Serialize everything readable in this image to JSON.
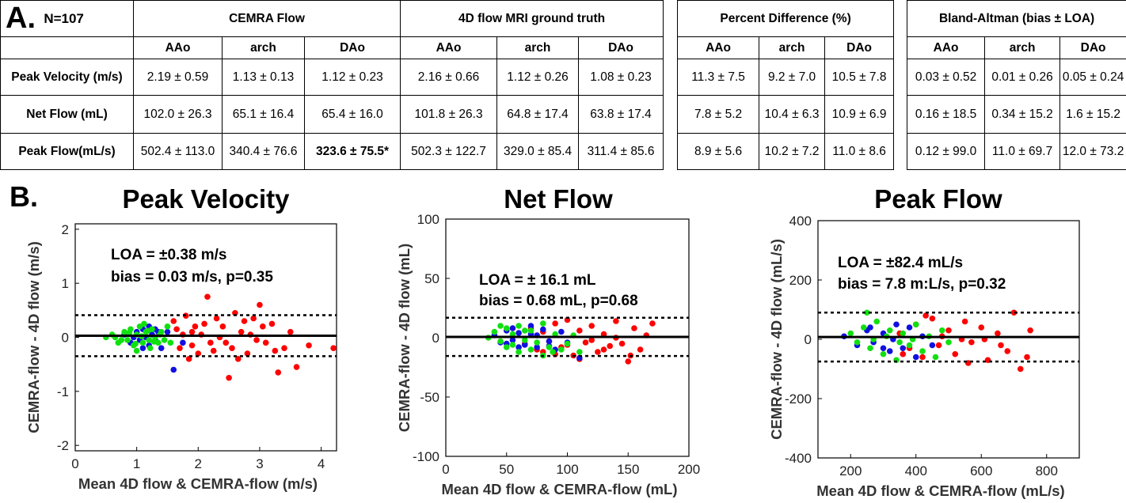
{
  "panel_a": {
    "letter": "A.",
    "n_label": "N=107",
    "groups": [
      "CEMRA Flow",
      "4D flow MRI ground truth",
      "Percent Difference (%)",
      "Bland-Altman (bias ± LOA)"
    ],
    "subheaders": [
      "AAo",
      "arch",
      "DAo"
    ],
    "rows": [
      {
        "label": "Peak Velocity (m/s)",
        "cells": [
          "2.19 ± 0.59",
          "1.13 ± 0.13",
          "1.12 ± 0.23",
          "2.16 ± 0.66",
          "1.12 ± 0.26",
          "1.08 ± 0.23",
          "11.3 ± 7.5",
          "9.2 ± 7.0",
          "10.5 ± 7.8",
          "0.03 ± 0.52",
          "0.01 ± 0.26",
          "0.05 ± 0.24"
        ]
      },
      {
        "label": "Net Flow (mL)",
        "cells": [
          "102.0 ± 26.3",
          "65.1 ± 16.4",
          "65.4 ± 16.0",
          "101.8 ± 26.3",
          "64.8 ± 17.4",
          "63.8 ± 17.4",
          "7.8 ± 5.2",
          "10.4 ± 6.3",
          "10.9 ± 6.9",
          "0.16 ± 18.5",
          "0.34 ± 15.2",
          "1.6 ± 15.2"
        ]
      },
      {
        "label": "Peak Flow(mL/s)",
        "cells": [
          "502.4 ± 113.0",
          "340.4 ± 76.6",
          "323.6 ± 75.5*",
          "502.3 ± 122.7",
          "329.0 ± 85.4",
          "311.4 ± 85.6",
          "8.9 ± 5.6",
          "10.2 ± 7.2",
          "11.0 ± 8.6",
          "0.12 ± 99.0",
          "11.0 ± 69.7",
          "12.0 ± 73.2"
        ]
      }
    ]
  },
  "panel_b": {
    "letter": "B."
  },
  "colors": {
    "AAo": "#ff0000",
    "arch": "#1010e0",
    "DAo": "#10e010"
  },
  "chart_data": [
    {
      "type": "scatter",
      "title": "Peak Velocity",
      "xlabel": "Mean 4D flow & CEMRA-flow (m/s)",
      "ylabel": "CEMRA-flow - 4D flow (m/s)",
      "xlim": [
        0,
        4.25
      ],
      "ylim": [
        -2.1,
        2.1
      ],
      "xticks": [
        "0",
        "1",
        "2",
        "3",
        "4"
      ],
      "yticks": [
        "-2",
        "-1",
        "0",
        "1",
        "2"
      ],
      "annotation": [
        "LOA = ±0.38 m/s",
        "bias = 0.03 m/s, p=0.35"
      ],
      "bias": 0.03,
      "loa_upper": 0.41,
      "loa_lower": -0.35,
      "series": [
        {
          "color": "#ff0000",
          "points": [
            [
              1.6,
              0.3
            ],
            [
              1.7,
              -0.2
            ],
            [
              1.8,
              0.4
            ],
            [
              1.9,
              0.1
            ],
            [
              2.0,
              -0.3
            ],
            [
              2.1,
              0.25
            ],
            [
              2.15,
              0.75
            ],
            [
              2.2,
              -0.1
            ],
            [
              2.3,
              0.35
            ],
            [
              2.4,
              0.2
            ],
            [
              2.5,
              -0.75
            ],
            [
              2.55,
              -0.2
            ],
            [
              2.6,
              0.45
            ],
            [
              2.7,
              0.1
            ],
            [
              2.8,
              -0.3
            ],
            [
              2.9,
              0.35
            ],
            [
              3.0,
              0.6
            ],
            [
              3.1,
              -0.1
            ],
            [
              3.2,
              0.25
            ],
            [
              3.3,
              -0.65
            ],
            [
              3.4,
              -0.2
            ],
            [
              3.5,
              0.1
            ],
            [
              3.6,
              -0.55
            ],
            [
              3.8,
              -0.15
            ],
            [
              4.2,
              -0.2
            ],
            [
              1.75,
              0.05
            ],
            [
              1.85,
              -0.4
            ],
            [
              1.95,
              0.2
            ],
            [
              2.05,
              0.05
            ],
            [
              2.25,
              -0.25
            ],
            [
              2.45,
              -0.1
            ],
            [
              2.65,
              -0.4
            ],
            [
              2.75,
              0.3
            ],
            [
              2.85,
              0.05
            ],
            [
              3.05,
              0.2
            ],
            [
              3.25,
              -0.25
            ],
            [
              1.65,
              0.15
            ],
            [
              1.9,
              -0.15
            ],
            [
              2.35,
              0.0
            ],
            [
              2.95,
              -0.05
            ]
          ]
        },
        {
          "color": "#1010e0",
          "points": [
            [
              0.8,
              0.05
            ],
            [
              0.9,
              -0.1
            ],
            [
              1.0,
              0.1
            ],
            [
              1.05,
              -0.05
            ],
            [
              1.1,
              0.15
            ],
            [
              1.15,
              0.0
            ],
            [
              1.2,
              -0.15
            ],
            [
              1.25,
              0.05
            ],
            [
              1.3,
              -0.05
            ],
            [
              1.35,
              0.1
            ],
            [
              1.4,
              -0.2
            ],
            [
              1.5,
              0.1
            ],
            [
              1.6,
              -0.6
            ],
            [
              1.75,
              -0.1
            ],
            [
              0.95,
              0.0
            ],
            [
              1.1,
              -0.2
            ],
            [
              1.2,
              0.2
            ],
            [
              1.3,
              0.15
            ]
          ]
        },
        {
          "color": "#10e010",
          "points": [
            [
              0.5,
              0.0
            ],
            [
              0.6,
              0.05
            ],
            [
              0.7,
              -0.1
            ],
            [
              0.8,
              0.1
            ],
            [
              0.85,
              -0.05
            ],
            [
              0.9,
              0.15
            ],
            [
              0.95,
              -0.15
            ],
            [
              1.0,
              0.05
            ],
            [
              1.05,
              0.2
            ],
            [
              1.1,
              -0.1
            ],
            [
              1.15,
              0.1
            ],
            [
              1.2,
              -0.05
            ],
            [
              1.25,
              0.15
            ],
            [
              1.3,
              0.0
            ],
            [
              1.35,
              -0.1
            ],
            [
              1.4,
              0.1
            ],
            [
              1.45,
              -0.05
            ],
            [
              1.5,
              0.2
            ],
            [
              0.75,
              -0.05
            ],
            [
              0.88,
              0.08
            ],
            [
              0.98,
              -0.12
            ],
            [
              1.08,
              0.02
            ],
            [
              1.18,
              0.12
            ],
            [
              1.28,
              -0.08
            ],
            [
              1.38,
              0.05
            ],
            [
              1.55,
              -0.1
            ],
            [
              0.65,
              0.0
            ],
            [
              1.0,
              -0.25
            ],
            [
              1.12,
              0.25
            ],
            [
              1.22,
              -0.2
            ]
          ]
        }
      ]
    },
    {
      "type": "scatter",
      "title": "Net Flow",
      "xlabel": "Mean 4D flow & CEMRA-flow (mL)",
      "ylabel": "CEMRA-flow - 4D flow (mL)",
      "xlim": [
        0,
        200
      ],
      "ylim": [
        -100,
        100
      ],
      "xticks": [
        "0",
        "50",
        "100",
        "150",
        "200"
      ],
      "yticks": [
        "-100",
        "-50",
        "0",
        "50",
        "100"
      ],
      "annotation": [
        "LOA = ± 16.1 mL",
        "bias = 0.68 mL, p=0.68"
      ],
      "bias": 0.68,
      "loa_upper": 16.8,
      "loa_lower": -15.4,
      "series": [
        {
          "color": "#ff0000",
          "points": [
            [
              65,
              -5
            ],
            [
              70,
              8
            ],
            [
              75,
              -10
            ],
            [
              80,
              5
            ],
            [
              85,
              -3
            ],
            [
              90,
              12
            ],
            [
              95,
              -8
            ],
            [
              100,
              15
            ],
            [
              105,
              -15
            ],
            [
              110,
              6
            ],
            [
              115,
              -4
            ],
            [
              120,
              10
            ],
            [
              125,
              -12
            ],
            [
              130,
              3
            ],
            [
              135,
              -7
            ],
            [
              140,
              14
            ],
            [
              145,
              -5
            ],
            [
              150,
              -20
            ],
            [
              152,
              -15
            ],
            [
              155,
              8
            ],
            [
              160,
              -10
            ],
            [
              165,
              2
            ],
            [
              170,
              12
            ],
            [
              100,
              -6
            ],
            [
              110,
              -18
            ],
            [
              120,
              -2
            ],
            [
              90,
              -14
            ],
            [
              80,
              -12
            ],
            [
              130,
              -10
            ],
            [
              140,
              0
            ]
          ]
        },
        {
          "color": "#1010e0",
          "points": [
            [
              40,
              2
            ],
            [
              45,
              -4
            ],
            [
              50,
              6
            ],
            [
              55,
              -2
            ],
            [
              60,
              4
            ],
            [
              65,
              -6
            ],
            [
              70,
              3
            ],
            [
              75,
              -8
            ],
            [
              80,
              7
            ],
            [
              85,
              -3
            ],
            [
              90,
              -10
            ],
            [
              95,
              5
            ],
            [
              100,
              -4
            ],
            [
              110,
              -17
            ],
            [
              60,
              -8
            ],
            [
              70,
              10
            ],
            [
              50,
              -5
            ],
            [
              55,
              8
            ],
            [
              85,
              -7
            ],
            [
              75,
              2
            ]
          ]
        },
        {
          "color": "#10e010",
          "points": [
            [
              35,
              0
            ],
            [
              40,
              5
            ],
            [
              45,
              -3
            ],
            [
              50,
              8
            ],
            [
              55,
              -6
            ],
            [
              60,
              10
            ],
            [
              65,
              -2
            ],
            [
              70,
              6
            ],
            [
              75,
              -4
            ],
            [
              80,
              12
            ],
            [
              85,
              -8
            ],
            [
              90,
              3
            ],
            [
              95,
              -10
            ],
            [
              100,
              -5
            ],
            [
              105,
              2
            ],
            [
              110,
              -12
            ],
            [
              45,
              10
            ],
            [
              50,
              -8
            ],
            [
              60,
              -12
            ],
            [
              65,
              6
            ],
            [
              70,
              -10
            ],
            [
              55,
              3
            ],
            [
              80,
              -15
            ],
            [
              88,
              -12
            ]
          ]
        }
      ]
    },
    {
      "type": "scatter",
      "title": "Peak Flow",
      "xlabel": "Mean 4D flow & CEMRA-flow (mL/s)",
      "ylabel": "CEMRA-flow - 4D flow (mL/s)",
      "xlim": [
        100,
        900
      ],
      "ylim": [
        -400,
        400
      ],
      "xticks": [
        "200",
        "400",
        "600",
        "800"
      ],
      "yticks": [
        "-400",
        "-200",
        "0",
        "200",
        "400"
      ],
      "annotation": [
        "LOA = ±82.4 mL/s",
        "bias = 7.8 m:L/s, p=0.32"
      ],
      "bias": 7.8,
      "loa_upper": 90,
      "loa_lower": -75,
      "series": [
        {
          "color": "#ff0000",
          "points": [
            [
              350,
              20
            ],
            [
              380,
              -30
            ],
            [
              400,
              50
            ],
            [
              420,
              -60
            ],
            [
              450,
              70
            ],
            [
              470,
              -20
            ],
            [
              500,
              30
            ],
            [
              520,
              -50
            ],
            [
              550,
              60
            ],
            [
              570,
              -10
            ],
            [
              600,
              40
            ],
            [
              620,
              -70
            ],
            [
              650,
              20
            ],
            [
              680,
              -40
            ],
            [
              700,
              90
            ],
            [
              720,
              -100
            ],
            [
              740,
              -60
            ],
            [
              750,
              30
            ],
            [
              560,
              -80
            ],
            [
              480,
              10
            ],
            [
              430,
              80
            ],
            [
              360,
              -50
            ],
            [
              610,
              0
            ],
            [
              660,
              -20
            ],
            [
              540,
              0
            ]
          ]
        },
        {
          "color": "#1010e0",
          "points": [
            [
              180,
              10
            ],
            [
              220,
              -20
            ],
            [
              250,
              30
            ],
            [
              270,
              -10
            ],
            [
              300,
              20
            ],
            [
              320,
              -40
            ],
            [
              340,
              50
            ],
            [
              360,
              -30
            ],
            [
              380,
              40
            ],
            [
              400,
              -60
            ],
            [
              420,
              10
            ],
            [
              450,
              -20
            ],
            [
              300,
              -30
            ],
            [
              260,
              40
            ],
            [
              330,
              0
            ]
          ]
        },
        {
          "color": "#10e010",
          "points": [
            [
              200,
              20
            ],
            [
              220,
              -10
            ],
            [
              240,
              40
            ],
            [
              250,
              90
            ],
            [
              260,
              -30
            ],
            [
              280,
              60
            ],
            [
              300,
              -50
            ],
            [
              320,
              30
            ],
            [
              340,
              -70
            ],
            [
              360,
              20
            ],
            [
              380,
              -20
            ],
            [
              400,
              50
            ],
            [
              420,
              -40
            ],
            [
              440,
              10
            ],
            [
              460,
              -60
            ],
            [
              480,
              30
            ],
            [
              500,
              -10
            ],
            [
              270,
              0
            ],
            [
              310,
              10
            ],
            [
              350,
              -10
            ],
            [
              390,
              0
            ]
          ]
        }
      ]
    }
  ]
}
